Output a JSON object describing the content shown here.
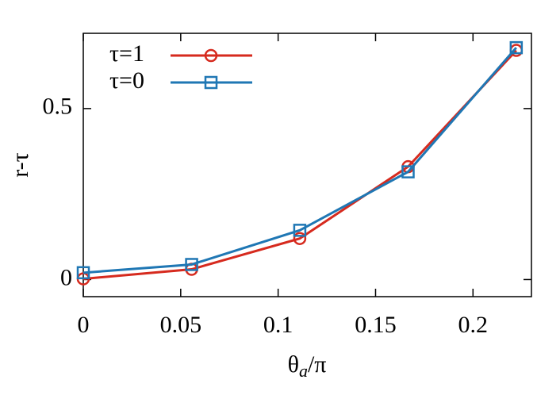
{
  "chart_data": {
    "type": "line",
    "x_label": {
      "base": "θ",
      "subscript": "a",
      "rest": "/π"
    },
    "y_label": "r-τ",
    "x": [
      0,
      0.0556,
      0.1111,
      0.1667,
      0.2222
    ],
    "series": [
      {
        "name": "τ=1",
        "color": "#d62a1e",
        "marker": "circle",
        "values": [
          0.002,
          0.03,
          0.12,
          0.33,
          0.67
        ]
      },
      {
        "name": "τ=0",
        "color": "#1f77b4",
        "marker": "square",
        "values": [
          0.02,
          0.044,
          0.144,
          0.315,
          0.678
        ]
      }
    ],
    "xlim": [
      0,
      0.23
    ],
    "ylim": [
      -0.05,
      0.72
    ],
    "xticks": [
      0,
      0.05,
      0.1,
      0.15,
      0.2
    ],
    "yticks": [
      0,
      0.5
    ],
    "legend": "upper-left"
  }
}
